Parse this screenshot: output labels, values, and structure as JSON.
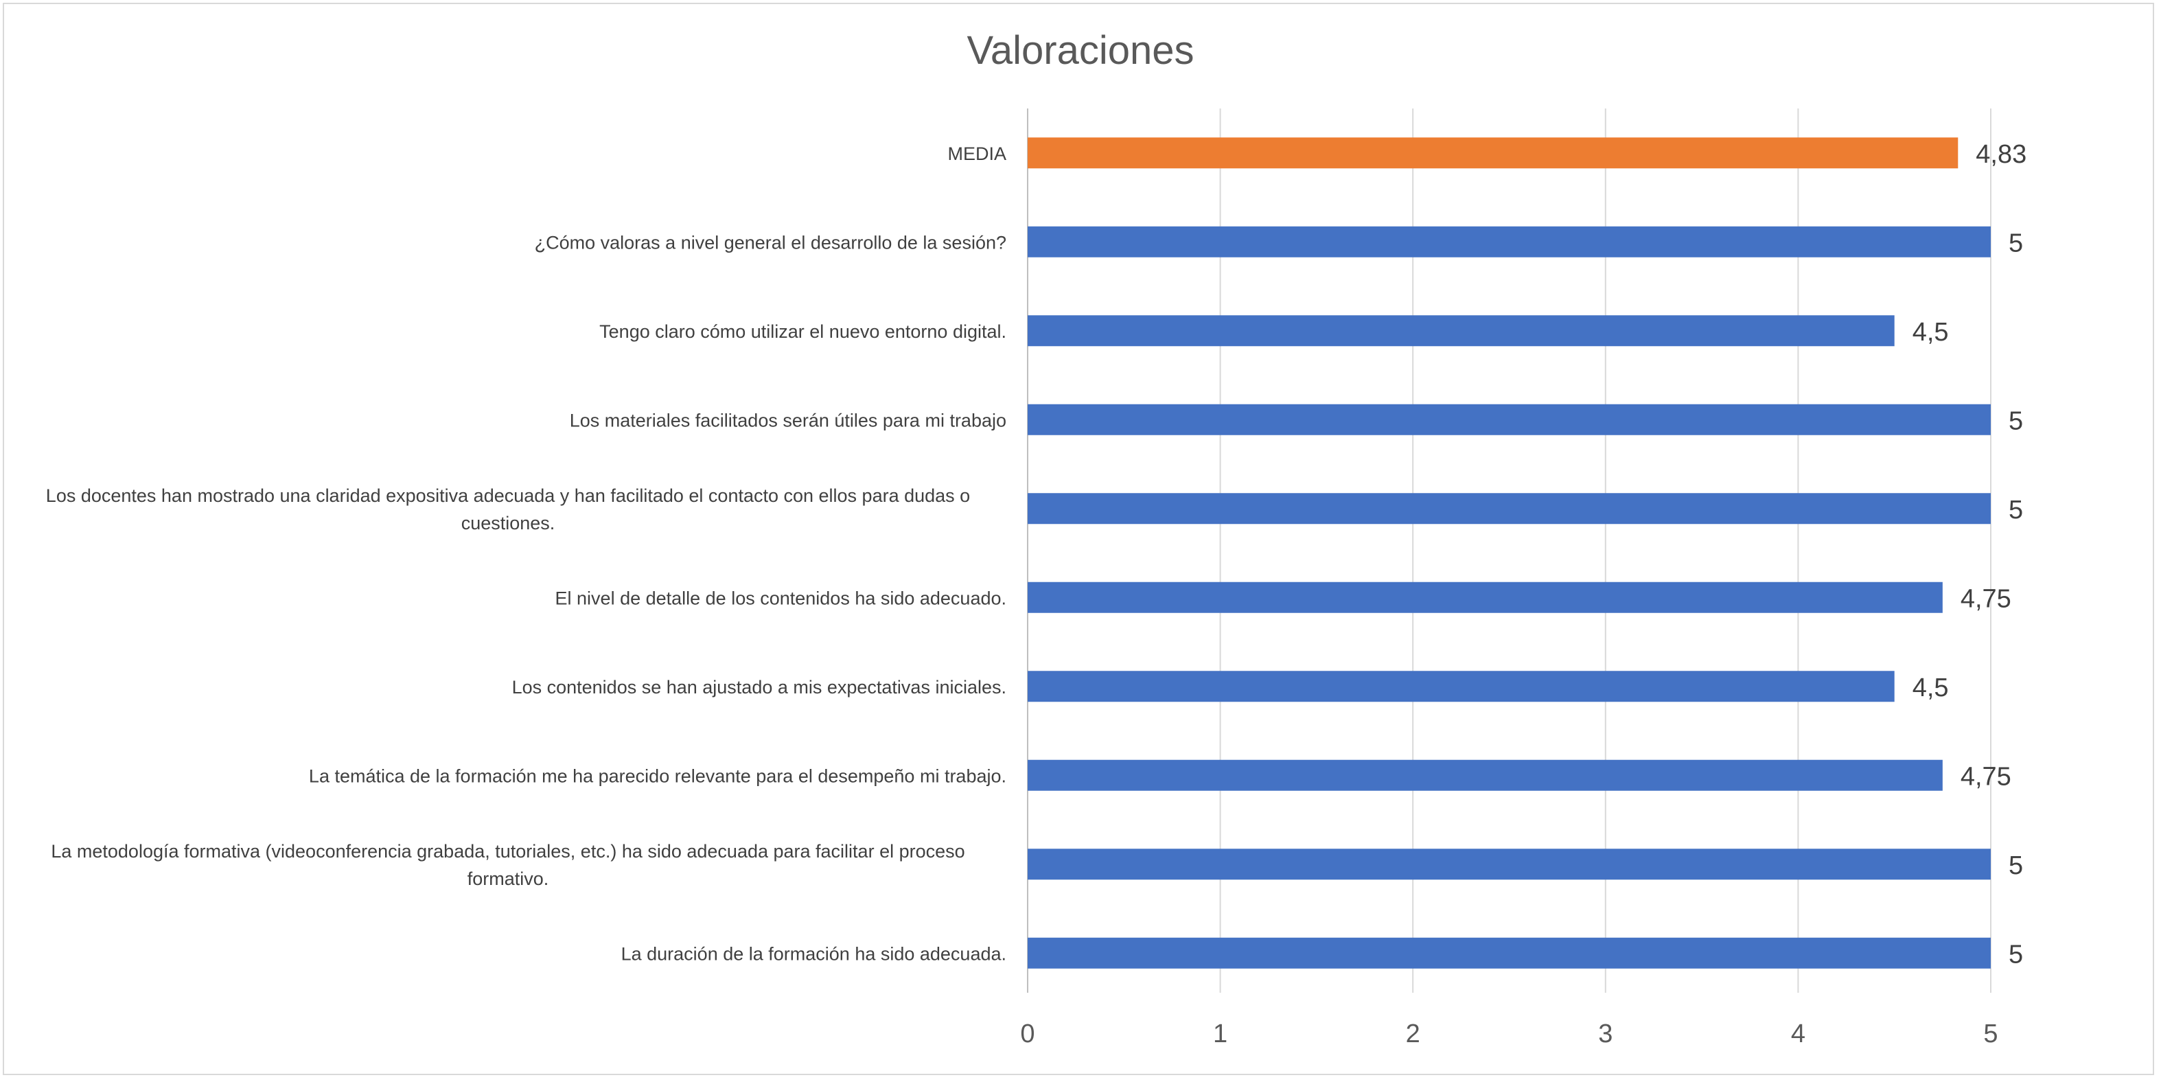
{
  "chart_data": {
    "type": "bar",
    "orientation": "horizontal",
    "title": "Valoraciones",
    "xlim": [
      0,
      5
    ],
    "x_ticks": [
      "0",
      "1",
      "2",
      "3",
      "4",
      "5"
    ],
    "grid": true,
    "categories": [
      "MEDIA",
      "¿Cómo valoras a nivel general el desarrollo de la sesión?",
      "Tengo claro cómo utilizar el nuevo entorno digital.",
      "Los materiales facilitados serán útiles para mi trabajo",
      "Los docentes han mostrado una claridad expositiva adecuada y han facilitado el contacto con ellos para dudas o cuestiones.",
      "El nivel de detalle de los contenidos ha sido adecuado.",
      "Los contenidos se han ajustado a mis expectativas iniciales.",
      "La temática de la formación me ha parecido relevante para el desempeño mi trabajo.",
      "La metodología formativa (videoconferencia grabada, tutoriales, etc.) ha sido adecuada para facilitar el proceso formativo.",
      "La duración de la formación ha sido adecuada."
    ],
    "category_lines": [
      [
        "MEDIA"
      ],
      [
        "¿Cómo valoras a nivel general el desarrollo de la sesión?"
      ],
      [
        "Tengo claro cómo utilizar el nuevo entorno digital."
      ],
      [
        "Los materiales facilitados serán útiles para mi trabajo"
      ],
      [
        "Los docentes han mostrado una claridad expositiva adecuada y han facilitado el contacto con ellos para dudas o",
        "cuestiones."
      ],
      [
        "El nivel de detalle de los contenidos ha sido adecuado."
      ],
      [
        "Los contenidos se han ajustado a mis expectativas iniciales."
      ],
      [
        "La temática de la formación me ha parecido relevante para el desempeño mi trabajo."
      ],
      [
        "La metodología formativa (videoconferencia grabada, tutoriales, etc.) ha sido adecuada para facilitar el proceso",
        "formativo."
      ],
      [
        "La duración de la formación ha sido adecuada."
      ]
    ],
    "values": [
      4.83,
      5,
      4.5,
      5,
      5,
      4.75,
      4.5,
      4.75,
      5,
      5
    ],
    "value_labels": [
      "4,83",
      "5",
      "4,5",
      "5",
      "5",
      "4,75",
      "4,5",
      "4,75",
      "5",
      "5"
    ],
    "colors": [
      "#ed7d31",
      "#4472c4",
      "#4472c4",
      "#4472c4",
      "#4472c4",
      "#4472c4",
      "#4472c4",
      "#4472c4",
      "#4472c4",
      "#4472c4"
    ],
    "grid_color": "#d9d9d9"
  }
}
